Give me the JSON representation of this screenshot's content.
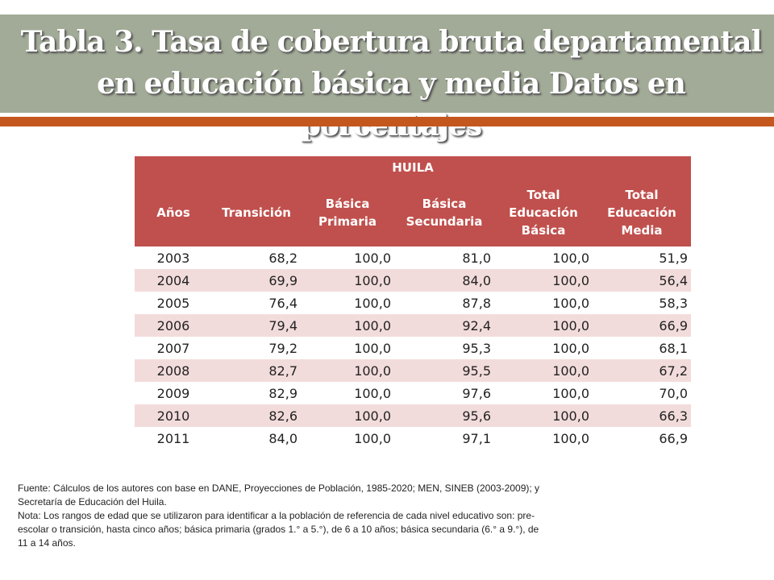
{
  "title": "Tabla 3. Tasa de cobertura bruta departamental en educación básica y media  Datos en porcentajes",
  "table": {
    "group_header": "HUILA",
    "columns": [
      "Años",
      "Transición",
      "Básica Primaria",
      "Básica Secundaria",
      "Total Educación Básica",
      "Total Educación Media"
    ],
    "rows": [
      [
        "2003",
        "68,2",
        "100,0",
        "81,0",
        "100,0",
        "51,9"
      ],
      [
        "2004",
        "69,9",
        "100,0",
        "84,0",
        "100,0",
        "56,4"
      ],
      [
        "2005",
        "76,4",
        "100,0",
        "87,8",
        "100,0",
        "58,3"
      ],
      [
        "2006",
        "79,4",
        "100,0",
        "92,4",
        "100,0",
        "66,9"
      ],
      [
        "2007",
        "79,2",
        "100,0",
        "95,3",
        "100,0",
        "68,1"
      ],
      [
        "2008",
        "82,7",
        "100,0",
        "95,5",
        "100,0",
        "67,2"
      ],
      [
        "2009",
        "82,9",
        "100,0",
        "97,6",
        "100,0",
        "70,0"
      ],
      [
        "2010",
        "82,6",
        "100,0",
        "95,6",
        "100,0",
        "66,3"
      ],
      [
        "2011",
        "84,0",
        "100,0",
        "97,1",
        "100,0",
        "66,9"
      ]
    ]
  },
  "notes": {
    "source": "Fuente: Cálculos de los autores con base en DANE, Proyecciones de Población, 1985-2020; MEN, SINEB (2003-2009); y Secretaría de Educación del Huila.",
    "note": "Nota: Los rangos de edad que se utilizaron para identificar a la población de referencia de cada nivel educativo son: pre-escolar o transición, hasta cinco años; básica primaria (grados 1.° a 5.°), de 6 a 10 años; básica secundaria (6.° a 9.°), de 11 a 14 años."
  },
  "colors": {
    "title_bar": "#a2ab97",
    "accent_bar": "#c4571d",
    "header": "#c0504d",
    "band": "#f2dcdb"
  }
}
